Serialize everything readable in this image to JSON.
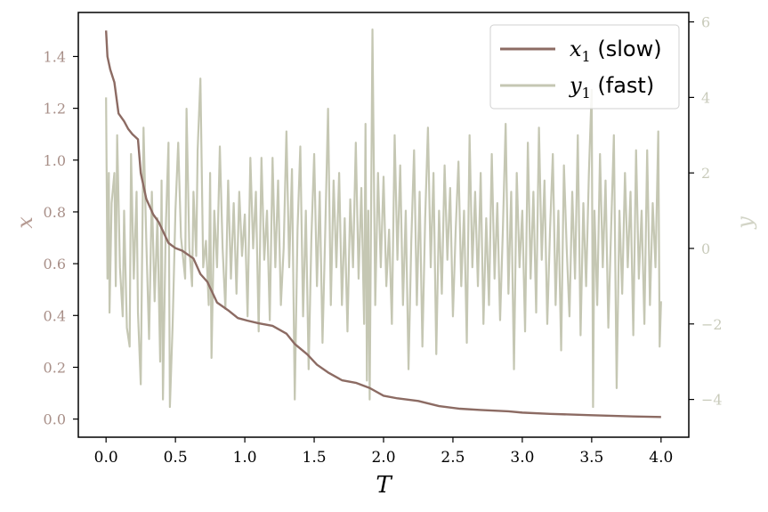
{
  "chart_data": {
    "type": "line",
    "title": "",
    "xlabel": "T",
    "ylabel_left": "x",
    "ylabel_right": "y",
    "xlim": [
      -0.2,
      4.2
    ],
    "ylim_left": [
      -0.07,
      1.57
    ],
    "ylim_right": [
      -5.0,
      6.25
    ],
    "xticks": [
      0.0,
      0.5,
      1.0,
      1.5,
      2.0,
      2.5,
      3.0,
      3.5,
      4.0
    ],
    "xtick_labels": [
      "0.0",
      "0.5",
      "1.0",
      "1.5",
      "2.0",
      "2.5",
      "3.0",
      "3.5",
      "4.0"
    ],
    "yticks_left": [
      0.0,
      0.2,
      0.4,
      0.6,
      0.8,
      1.0,
      1.2,
      1.4
    ],
    "ytick_labels_left": [
      "0.0",
      "0.2",
      "0.4",
      "0.6",
      "0.8",
      "1.0",
      "1.2",
      "1.4"
    ],
    "yticks_right": [
      -4,
      -2,
      0,
      2,
      4,
      6
    ],
    "ytick_labels_right": [
      "−4",
      "−2",
      "0",
      "2",
      "4",
      "6"
    ],
    "grid": false,
    "legend_position": "top-right",
    "series": [
      {
        "name": "x₁ (slow)",
        "legend_var": "x",
        "legend_sub": "1",
        "legend_suffix": " (slow)",
        "axis": "left",
        "color": "#8c6b63",
        "points": [
          [
            0.0,
            1.5
          ],
          [
            0.01,
            1.4
          ],
          [
            0.03,
            1.35
          ],
          [
            0.06,
            1.3
          ],
          [
            0.09,
            1.18
          ],
          [
            0.13,
            1.15
          ],
          [
            0.16,
            1.12
          ],
          [
            0.19,
            1.1
          ],
          [
            0.23,
            1.08
          ],
          [
            0.25,
            0.95
          ],
          [
            0.29,
            0.85
          ],
          [
            0.34,
            0.79
          ],
          [
            0.38,
            0.76
          ],
          [
            0.45,
            0.68
          ],
          [
            0.5,
            0.66
          ],
          [
            0.55,
            0.65
          ],
          [
            0.63,
            0.62
          ],
          [
            0.68,
            0.56
          ],
          [
            0.73,
            0.53
          ],
          [
            0.8,
            0.45
          ],
          [
            0.88,
            0.42
          ],
          [
            0.95,
            0.39
          ],
          [
            1.02,
            0.38
          ],
          [
            1.1,
            0.37
          ],
          [
            1.2,
            0.36
          ],
          [
            1.3,
            0.33
          ],
          [
            1.36,
            0.29
          ],
          [
            1.45,
            0.25
          ],
          [
            1.52,
            0.21
          ],
          [
            1.6,
            0.18
          ],
          [
            1.7,
            0.15
          ],
          [
            1.8,
            0.14
          ],
          [
            1.9,
            0.12
          ],
          [
            2.0,
            0.09
          ],
          [
            2.1,
            0.08
          ],
          [
            2.25,
            0.07
          ],
          [
            2.4,
            0.05
          ],
          [
            2.55,
            0.04
          ],
          [
            2.7,
            0.035
          ],
          [
            2.9,
            0.03
          ],
          [
            3.0,
            0.025
          ],
          [
            3.2,
            0.02
          ],
          [
            3.5,
            0.015
          ],
          [
            3.8,
            0.01
          ],
          [
            4.0,
            0.008
          ]
        ]
      },
      {
        "name": "y₁ (fast)",
        "legend_var": "y",
        "legend_sub": "1",
        "legend_suffix": " (fast)",
        "axis": "right",
        "color": "#c5c7b3",
        "points": [
          [
            0.0,
            4.0
          ],
          [
            0.01,
            -0.8
          ],
          [
            0.02,
            2.0
          ],
          [
            0.025,
            -1.7
          ],
          [
            0.04,
            1.2
          ],
          [
            0.06,
            2.0
          ],
          [
            0.07,
            -1.0
          ],
          [
            0.08,
            3.0
          ],
          [
            0.1,
            -0.5
          ],
          [
            0.12,
            -1.8
          ],
          [
            0.13,
            1.0
          ],
          [
            0.15,
            -2.1
          ],
          [
            0.17,
            -2.6
          ],
          [
            0.18,
            2.5
          ],
          [
            0.2,
            -0.8
          ],
          [
            0.22,
            1.5
          ],
          [
            0.23,
            -1.7
          ],
          [
            0.25,
            -3.6
          ],
          [
            0.27,
            3.2
          ],
          [
            0.29,
            0.2
          ],
          [
            0.31,
            -2.4
          ],
          [
            0.33,
            1.5
          ],
          [
            0.35,
            -1.4
          ],
          [
            0.37,
            0.8
          ],
          [
            0.39,
            -3.0
          ],
          [
            0.4,
            1.8
          ],
          [
            0.41,
            -4.0
          ],
          [
            0.43,
            0.5
          ],
          [
            0.45,
            2.8
          ],
          [
            0.46,
            -4.2
          ],
          [
            0.48,
            -2.0
          ],
          [
            0.5,
            1.0
          ],
          [
            0.52,
            2.8
          ],
          [
            0.54,
            0.3
          ],
          [
            0.57,
            -0.8
          ],
          [
            0.58,
            3.7
          ],
          [
            0.6,
            0.0
          ],
          [
            0.62,
            -1.0
          ],
          [
            0.63,
            1.5
          ],
          [
            0.65,
            -0.2
          ],
          [
            0.66,
            2.6
          ],
          [
            0.68,
            4.5
          ],
          [
            0.7,
            -0.5
          ],
          [
            0.72,
            0.2
          ],
          [
            0.74,
            -1.5
          ],
          [
            0.75,
            2.0
          ],
          [
            0.76,
            -2.9
          ],
          [
            0.78,
            1.0
          ],
          [
            0.8,
            -0.5
          ],
          [
            0.82,
            2.7
          ],
          [
            0.84,
            0.0
          ],
          [
            0.86,
            -1.6
          ],
          [
            0.88,
            1.8
          ],
          [
            0.9,
            -0.8
          ],
          [
            0.92,
            1.2
          ],
          [
            0.94,
            -1.2
          ],
          [
            0.96,
            1.5
          ],
          [
            0.98,
            -0.2
          ],
          [
            1.0,
            0.9
          ],
          [
            1.02,
            -1.8
          ],
          [
            1.04,
            2.4
          ],
          [
            1.06,
            0.0
          ],
          [
            1.08,
            1.5
          ],
          [
            1.1,
            -2.2
          ],
          [
            1.12,
            2.4
          ],
          [
            1.14,
            -0.3
          ],
          [
            1.16,
            1.0
          ],
          [
            1.18,
            -1.9
          ],
          [
            1.2,
            2.4
          ],
          [
            1.22,
            -0.5
          ],
          [
            1.24,
            1.8
          ],
          [
            1.26,
            -1.5
          ],
          [
            1.28,
            0.0
          ],
          [
            1.3,
            3.1
          ],
          [
            1.32,
            -0.5
          ],
          [
            1.34,
            2.1
          ],
          [
            1.36,
            -4.0
          ],
          [
            1.38,
            0.5
          ],
          [
            1.4,
            2.7
          ],
          [
            1.42,
            -1.8
          ],
          [
            1.44,
            1.0
          ],
          [
            1.46,
            -3.2
          ],
          [
            1.48,
            0.3
          ],
          [
            1.5,
            2.5
          ],
          [
            1.52,
            -1.0
          ],
          [
            1.54,
            1.5
          ],
          [
            1.56,
            -2.5
          ],
          [
            1.58,
            0.5
          ],
          [
            1.6,
            3.7
          ],
          [
            1.62,
            -1.5
          ],
          [
            1.64,
            1.8
          ],
          [
            1.66,
            -0.5
          ],
          [
            1.68,
            2.0
          ],
          [
            1.7,
            -1.5
          ],
          [
            1.72,
            0.8
          ],
          [
            1.74,
            -2.2
          ],
          [
            1.76,
            1.3
          ],
          [
            1.78,
            -0.5
          ],
          [
            1.8,
            2.8
          ],
          [
            1.82,
            -0.8
          ],
          [
            1.84,
            1.6
          ],
          [
            1.86,
            -2.0
          ],
          [
            1.87,
            3.3
          ],
          [
            1.88,
            -3.5
          ],
          [
            1.89,
            1.0
          ],
          [
            1.9,
            -4.0
          ],
          [
            1.92,
            5.8
          ],
          [
            1.94,
            -1.5
          ],
          [
            1.96,
            2.0
          ],
          [
            1.98,
            -0.5
          ],
          [
            2.0,
            1.9
          ],
          [
            2.02,
            -1.0
          ],
          [
            2.04,
            0.5
          ],
          [
            2.06,
            -2.0
          ],
          [
            2.08,
            3.0
          ],
          [
            2.1,
            -0.3
          ],
          [
            2.12,
            2.2
          ],
          [
            2.14,
            -1.5
          ],
          [
            2.16,
            1.0
          ],
          [
            2.18,
            -3.2
          ],
          [
            2.2,
            0.2
          ],
          [
            2.22,
            2.6
          ],
          [
            2.24,
            -1.5
          ],
          [
            2.26,
            1.5
          ],
          [
            2.28,
            -2.6
          ],
          [
            2.3,
            0.8
          ],
          [
            2.32,
            3.2
          ],
          [
            2.34,
            -0.5
          ],
          [
            2.36,
            2.0
          ],
          [
            2.38,
            -2.8
          ],
          [
            2.4,
            1.0
          ],
          [
            2.42,
            -1.2
          ],
          [
            2.44,
            2.2
          ],
          [
            2.46,
            -0.3
          ],
          [
            2.48,
            1.6
          ],
          [
            2.5,
            -1.8
          ],
          [
            2.52,
            0.5
          ],
          [
            2.54,
            2.3
          ],
          [
            2.56,
            -1.0
          ],
          [
            2.58,
            1.0
          ],
          [
            2.6,
            -2.5
          ],
          [
            2.62,
            3.0
          ],
          [
            2.64,
            -0.5
          ],
          [
            2.66,
            1.5
          ],
          [
            2.68,
            -1.0
          ],
          [
            2.7,
            2.0
          ],
          [
            2.72,
            -2.0
          ],
          [
            2.74,
            0.8
          ],
          [
            2.76,
            -1.5
          ],
          [
            2.78,
            2.5
          ],
          [
            2.8,
            -0.8
          ],
          [
            2.82,
            1.2
          ],
          [
            2.84,
            -1.9
          ],
          [
            2.86,
            0.5
          ],
          [
            2.88,
            3.3
          ],
          [
            2.9,
            -1.2
          ],
          [
            2.92,
            1.5
          ],
          [
            2.94,
            -3.2
          ],
          [
            2.96,
            2.0
          ],
          [
            2.98,
            -0.5
          ],
          [
            3.0,
            1.0
          ],
          [
            3.02,
            -2.2
          ],
          [
            3.04,
            2.8
          ],
          [
            3.06,
            -0.8
          ],
          [
            3.08,
            1.5
          ],
          [
            3.1,
            -1.7
          ],
          [
            3.12,
            3.2
          ],
          [
            3.14,
            -0.3
          ],
          [
            3.16,
            1.8
          ],
          [
            3.18,
            -2.0
          ],
          [
            3.2,
            0.5
          ],
          [
            3.22,
            2.5
          ],
          [
            3.24,
            -1.5
          ],
          [
            3.26,
            1.0
          ],
          [
            3.28,
            -2.7
          ],
          [
            3.3,
            2.2
          ],
          [
            3.32,
            0.0
          ],
          [
            3.34,
            -1.8
          ],
          [
            3.36,
            1.5
          ],
          [
            3.38,
            -0.8
          ],
          [
            3.4,
            3.0
          ],
          [
            3.42,
            -2.3
          ],
          [
            3.44,
            1.2
          ],
          [
            3.46,
            -1.0
          ],
          [
            3.48,
            2.0
          ],
          [
            3.5,
            4.2
          ],
          [
            3.51,
            -4.2
          ],
          [
            3.52,
            1.0
          ],
          [
            3.54,
            -1.5
          ],
          [
            3.56,
            2.5
          ],
          [
            3.58,
            -0.5
          ],
          [
            3.6,
            1.8
          ],
          [
            3.62,
            -2.1
          ],
          [
            3.64,
            0.5
          ],
          [
            3.66,
            3.0
          ],
          [
            3.68,
            -3.7
          ],
          [
            3.7,
            1.0
          ],
          [
            3.72,
            -1.2
          ],
          [
            3.74,
            2.0
          ],
          [
            3.76,
            -0.5
          ],
          [
            3.78,
            1.5
          ],
          [
            3.8,
            -2.3
          ],
          [
            3.82,
            2.6
          ],
          [
            3.84,
            -0.8
          ],
          [
            3.86,
            1.0
          ],
          [
            3.88,
            -2.0
          ],
          [
            3.9,
            2.6
          ],
          [
            3.92,
            -1.5
          ],
          [
            3.94,
            1.2
          ],
          [
            3.96,
            -0.5
          ],
          [
            3.98,
            3.1
          ],
          [
            3.99,
            -2.6
          ],
          [
            4.0,
            -1.4
          ]
        ]
      }
    ]
  }
}
